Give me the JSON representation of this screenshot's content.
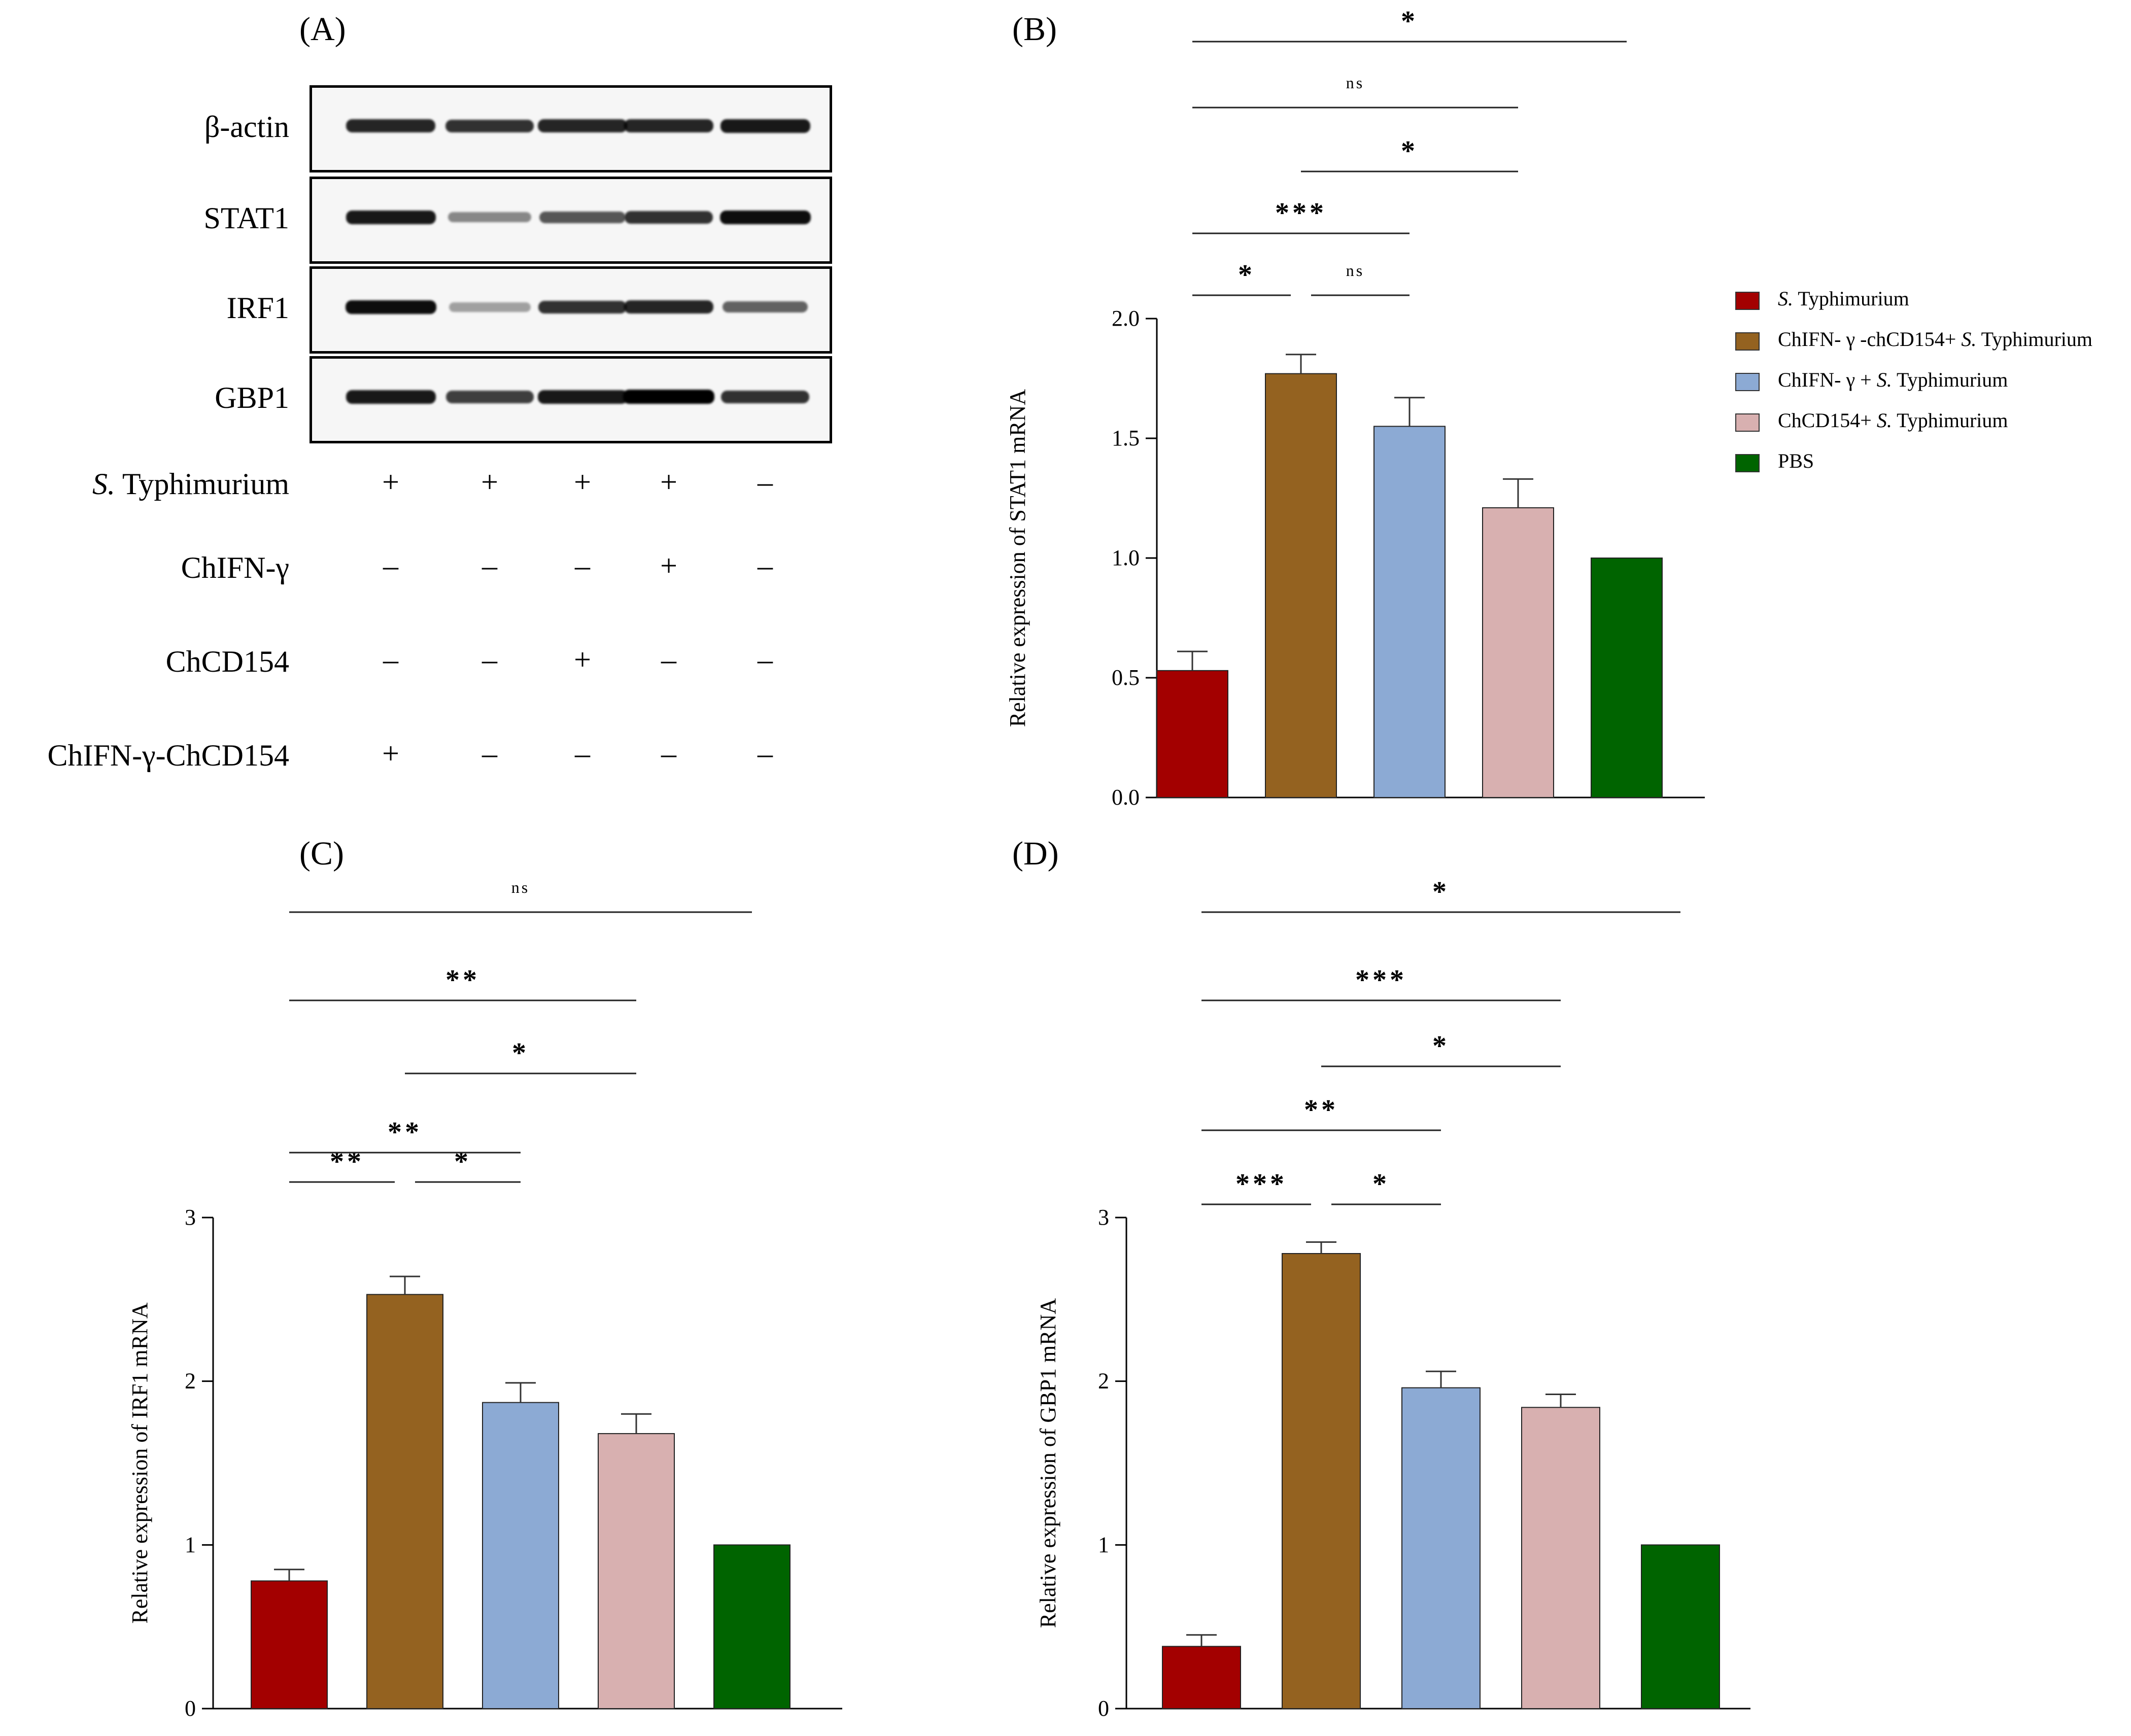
{
  "panels": {
    "a_label": "(A)",
    "b_label": "(B)",
    "c_label": "(C)",
    "d_label": "(D)"
  },
  "blot": {
    "rows": [
      {
        "name": "β-actin",
        "intensities": [
          0.85,
          0.8,
          0.85,
          0.85,
          0.9
        ]
      },
      {
        "name": "STAT1",
        "intensities": [
          0.9,
          0.45,
          0.65,
          0.8,
          0.95
        ]
      },
      {
        "name": "IRF1",
        "intensities": [
          0.95,
          0.35,
          0.8,
          0.85,
          0.6
        ]
      },
      {
        "name": "GBP1",
        "intensities": [
          0.9,
          0.75,
          0.9,
          1.0,
          0.8
        ]
      }
    ],
    "conditions": [
      {
        "label_italic": "S.",
        "label_rest": " Typhimurium",
        "signs": [
          "+",
          "+",
          "+",
          "+",
          "–"
        ]
      },
      {
        "label_italic": "",
        "label_rest": "ChIFN-γ",
        "signs": [
          "–",
          "–",
          "–",
          "+",
          "–"
        ]
      },
      {
        "label_italic": "",
        "label_rest": "ChCD154",
        "signs": [
          "–",
          "–",
          "+",
          "–",
          "–"
        ]
      },
      {
        "label_italic": "",
        "label_rest": "ChIFN-γ-ChCD154",
        "signs": [
          "+",
          "–",
          "–",
          "–",
          "–"
        ]
      }
    ]
  },
  "legend": [
    {
      "prefix": "",
      "italic": "S.",
      "suffix": " Typhimurium",
      "color": "#a30000"
    },
    {
      "prefix": "ChIFN- γ -chCD154+ ",
      "italic": "S.",
      "suffix": " Typhimurium",
      "color": "#946220"
    },
    {
      "prefix": "ChIFN- γ + ",
      "italic": "S.",
      "suffix": " Typhimurium",
      "color": "#8caad4"
    },
    {
      "prefix": "ChCD154+ ",
      "italic": "S.",
      "suffix": " Typhimurium",
      "color": "#d8b0b0"
    },
    {
      "prefix": "PBS",
      "italic": "",
      "suffix": "",
      "color": "#006400"
    }
  ],
  "chart_data": [
    {
      "type": "bar",
      "panel": "B",
      "ylabel": "Relative expression of STAT1 mRNA",
      "ylim": [
        0,
        2.0
      ],
      "yticks": [
        "0.0",
        "0.5",
        "1.0",
        "1.5",
        "2.0"
      ],
      "values": [
        0.53,
        1.77,
        1.55,
        1.21,
        1.0
      ],
      "errors": [
        0.08,
        0.08,
        0.12,
        0.12,
        0
      ],
      "colors": [
        "#a30000",
        "#946220",
        "#8caad4",
        "#d8b0b0",
        "#006400"
      ],
      "significance": [
        {
          "from": 0,
          "to": 1,
          "label": "*"
        },
        {
          "from": 1,
          "to": 2,
          "label": "ns"
        },
        {
          "from": 0,
          "to": 2,
          "label": "***"
        },
        {
          "from": 1,
          "to": 3,
          "label": "*"
        },
        {
          "from": 0,
          "to": 3,
          "label": "ns"
        },
        {
          "from": 0,
          "to": 4,
          "label": "*"
        }
      ]
    },
    {
      "type": "bar",
      "panel": "C",
      "ylabel": "Relative expression of IRF1 mRNA",
      "ylim": [
        0,
        3
      ],
      "yticks": [
        "0",
        "1",
        "2",
        "3"
      ],
      "values": [
        0.78,
        2.53,
        1.87,
        1.68,
        1.0
      ],
      "errors": [
        0.07,
        0.11,
        0.12,
        0.12,
        0
      ],
      "colors": [
        "#a30000",
        "#946220",
        "#8caad4",
        "#d8b0b0",
        "#006400"
      ],
      "significance": [
        {
          "from": 0,
          "to": 1,
          "label": "**"
        },
        {
          "from": 1,
          "to": 2,
          "label": "*"
        },
        {
          "from": 0,
          "to": 2,
          "label": "**"
        },
        {
          "from": 1,
          "to": 3,
          "label": "*"
        },
        {
          "from": 0,
          "to": 3,
          "label": "**"
        },
        {
          "from": 0,
          "to": 4,
          "label": "ns"
        }
      ]
    },
    {
      "type": "bar",
      "panel": "D",
      "ylabel": "Relative expression of GBP1 mRNA",
      "ylim": [
        0,
        3
      ],
      "yticks": [
        "0",
        "1",
        "2",
        "3"
      ],
      "values": [
        0.38,
        2.78,
        1.96,
        1.84,
        1.0
      ],
      "errors": [
        0.07,
        0.07,
        0.1,
        0.08,
        0
      ],
      "colors": [
        "#a30000",
        "#946220",
        "#8caad4",
        "#d8b0b0",
        "#006400"
      ],
      "significance": [
        {
          "from": 0,
          "to": 1,
          "label": "***"
        },
        {
          "from": 1,
          "to": 2,
          "label": "*"
        },
        {
          "from": 0,
          "to": 2,
          "label": "**"
        },
        {
          "from": 1,
          "to": 3,
          "label": "*"
        },
        {
          "from": 0,
          "to": 3,
          "label": "***"
        },
        {
          "from": 0,
          "to": 4,
          "label": "*"
        }
      ]
    }
  ]
}
